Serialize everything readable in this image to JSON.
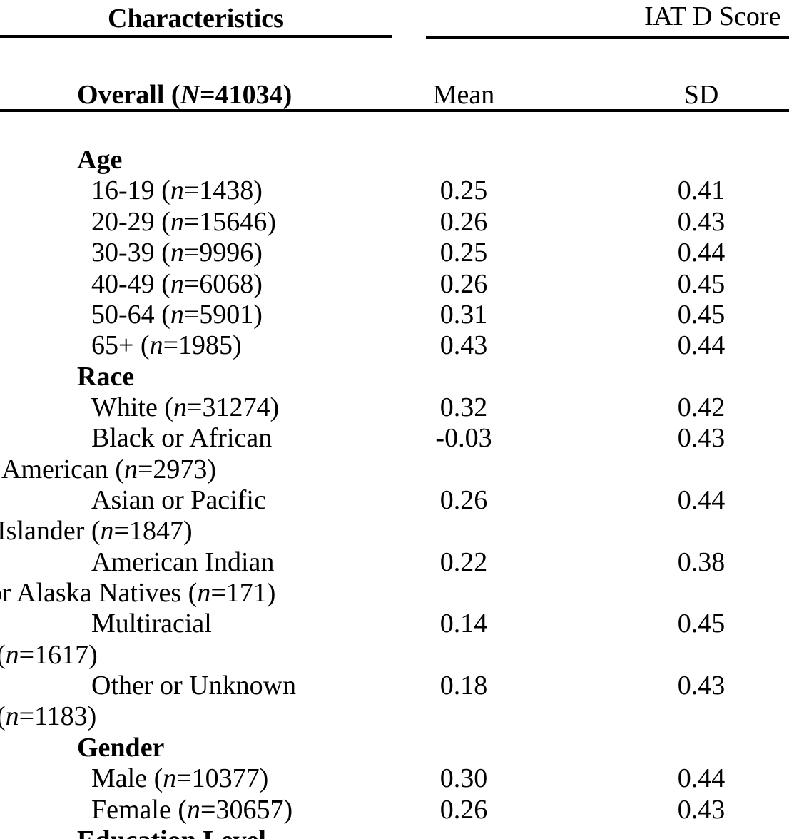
{
  "colors": {
    "background": "#ffffff",
    "text": "#000000",
    "rule": "#000000"
  },
  "header": {
    "characteristics": "Characteristics",
    "group_header": "IAT D Score",
    "overall_pre": "Overall (",
    "overall_n": "N",
    "overall_post": "=41034)",
    "mean_label": "Mean",
    "sd_label": "SD"
  },
  "rows": [
    {
      "t": "section",
      "text": "Age"
    },
    {
      "t": "item",
      "pre": "16-19 (",
      "n": "n",
      "post": "=1438)",
      "mean": "0.25",
      "sd": "0.41"
    },
    {
      "t": "item",
      "pre": "20-29 (",
      "n": "n",
      "post": "=15646)",
      "mean": "0.26",
      "sd": "0.43"
    },
    {
      "t": "item",
      "pre": "30-39 (",
      "n": "n",
      "post": "=9996)",
      "mean": "0.25",
      "sd": "0.44"
    },
    {
      "t": "item",
      "pre": "40-49 (",
      "n": "n",
      "post": "=6068)",
      "mean": "0.26",
      "sd": "0.45"
    },
    {
      "t": "item",
      "pre": "50-64 (",
      "n": "n",
      "post": "=5901)",
      "mean": "0.31",
      "sd": "0.45"
    },
    {
      "t": "item",
      "pre": "65+ (",
      "n": "n",
      "post": "=1985)",
      "mean": "0.43",
      "sd": "0.44"
    },
    {
      "t": "section",
      "text": "Race"
    },
    {
      "t": "item",
      "pre": "White (",
      "n": "n",
      "post": "=31274)",
      "mean": "0.32",
      "sd": "0.42"
    },
    {
      "t": "item",
      "text": "Black or African",
      "mean": "-0.03",
      "sd": "0.43"
    },
    {
      "t": "cont",
      "pre": "American (",
      "n": "n",
      "post": "=2973)",
      "x": 2
    },
    {
      "t": "item",
      "text": "Asian or Pacific",
      "mean": "0.26",
      "sd": "0.44"
    },
    {
      "t": "cont",
      "pre": "Islander (",
      "n": "n",
      "post": "=1847)",
      "x": -4
    },
    {
      "t": "item",
      "text": "American Indian",
      "mean": "0.22",
      "sd": "0.38"
    },
    {
      "t": "cont",
      "pre": "or Alaska Natives (",
      "n": "n",
      "post": "=171)",
      "x": -16
    },
    {
      "t": "item",
      "text": "Multiracial",
      "mean": "0.14",
      "sd": "0.45"
    },
    {
      "t": "cont",
      "pre": "(",
      "n": "n",
      "post": "=1617)",
      "x": -5
    },
    {
      "t": "item",
      "text": "Other or Unknown",
      "mean": "0.18",
      "sd": "0.43"
    },
    {
      "t": "cont",
      "pre": "(",
      "n": "n",
      "post": "=1183)",
      "x": -5
    },
    {
      "t": "section",
      "text": "Gender"
    },
    {
      "t": "item",
      "pre": "Male (",
      "n": "n",
      "post": "=10377)",
      "mean": "0.30",
      "sd": "0.44"
    },
    {
      "t": "item",
      "pre": "Female (",
      "n": "n",
      "post": "=30657)",
      "mean": "0.26",
      "sd": "0.43"
    },
    {
      "t": "section",
      "text": "Education Level"
    }
  ]
}
